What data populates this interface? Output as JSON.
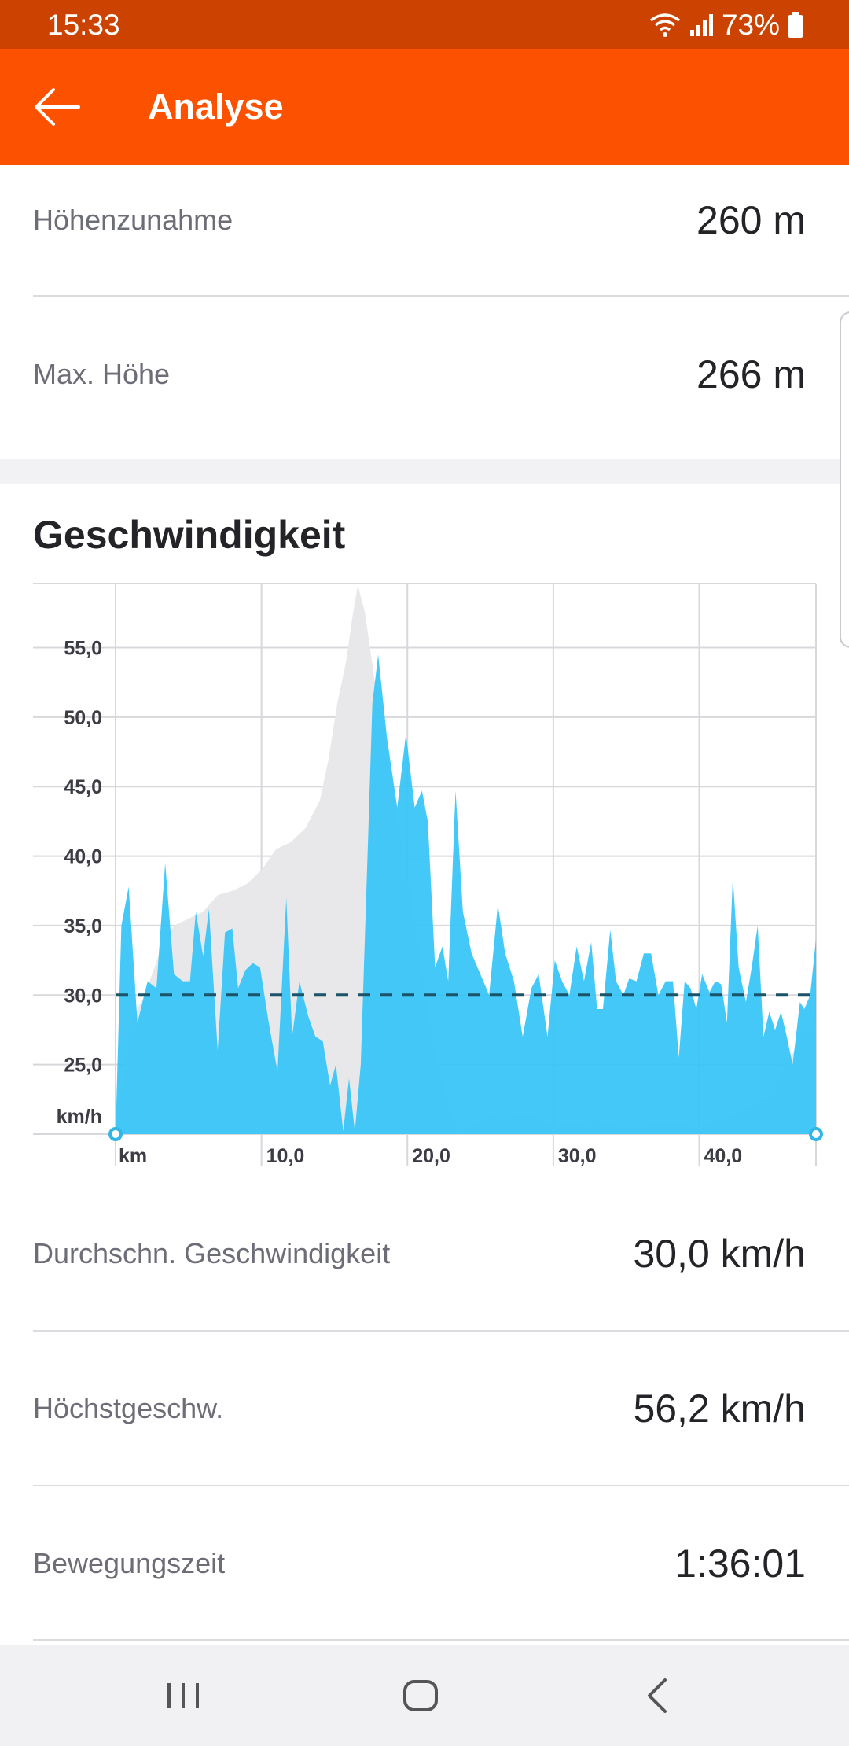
{
  "status_bar": {
    "time": "15:33",
    "battery": "73%"
  },
  "app_bar": {
    "title": "Analyse"
  },
  "elevation_rows": [
    {
      "label": "Höhenzunahme",
      "value": "260 m"
    },
    {
      "label": "Max. Höhe",
      "value": "266 m"
    }
  ],
  "speed_section": {
    "title": "Geschwindigkeit"
  },
  "chart_data": {
    "type": "area",
    "y_unit_label": "km/h",
    "x_unit_label": "km",
    "y_ticks": [
      "25,0",
      "30,0",
      "35,0",
      "40,0",
      "45,0",
      "50,0",
      "55,0"
    ],
    "x_ticks": [
      "10,0",
      "20,0",
      "30,0",
      "40,0"
    ],
    "ylim": [
      20,
      59.5
    ],
    "xlim": [
      0,
      48
    ],
    "average_line": 30.0,
    "grid": true,
    "colors": {
      "speed": "#33c3f7",
      "elevation": "#e8e8ea",
      "average": "#1b5468",
      "marker": "#33b5e5"
    },
    "series": [
      {
        "values": [
          [
            0,
            20
          ],
          [
            0.4,
            35
          ],
          [
            0.9,
            37.8
          ],
          [
            1.5,
            28
          ],
          [
            2.2,
            31
          ],
          [
            2.8,
            30.5
          ],
          [
            3.4,
            39.5
          ],
          [
            4.0,
            31.5
          ],
          [
            4.6,
            31
          ],
          [
            5.1,
            31
          ],
          [
            5.5,
            36
          ],
          [
            6.0,
            32.8
          ],
          [
            6.4,
            36.2
          ],
          [
            7.0,
            26
          ],
          [
            7.5,
            34.5
          ],
          [
            8.0,
            34.8
          ],
          [
            8.4,
            30.5
          ],
          [
            8.9,
            31.8
          ],
          [
            9.4,
            32.3
          ],
          [
            9.9,
            32
          ],
          [
            10.5,
            28
          ],
          [
            11.1,
            24.5
          ],
          [
            11.7,
            37
          ],
          [
            12.1,
            27
          ],
          [
            12.6,
            31
          ],
          [
            13.2,
            28.5
          ],
          [
            13.7,
            27
          ],
          [
            14.2,
            26.7
          ],
          [
            14.7,
            23.5
          ],
          [
            15.1,
            25
          ],
          [
            15.6,
            20.2
          ],
          [
            16.0,
            24
          ],
          [
            16.4,
            20.2
          ],
          [
            16.8,
            25
          ],
          [
            17.3,
            41
          ],
          [
            17.6,
            51
          ],
          [
            18.0,
            54.5
          ],
          [
            18.6,
            48.5
          ],
          [
            19.3,
            43.5
          ],
          [
            19.9,
            48.8
          ],
          [
            20.5,
            43.5
          ],
          [
            21.0,
            44.7
          ],
          [
            21.4,
            42.5
          ],
          [
            21.9,
            32
          ],
          [
            22.4,
            33.5
          ],
          [
            22.8,
            31
          ],
          [
            23.3,
            44.7
          ],
          [
            23.8,
            36
          ],
          [
            24.4,
            33
          ],
          [
            25.0,
            31.5
          ],
          [
            25.6,
            30
          ],
          [
            26.2,
            36.5
          ],
          [
            26.7,
            33
          ],
          [
            27.3,
            31
          ],
          [
            27.9,
            27
          ],
          [
            28.5,
            30.5
          ],
          [
            29.0,
            31.5
          ],
          [
            29.6,
            27
          ],
          [
            30.1,
            32.5
          ],
          [
            30.6,
            31
          ],
          [
            31.1,
            30
          ],
          [
            31.6,
            33.5
          ],
          [
            32.1,
            31
          ],
          [
            32.6,
            33.8
          ],
          [
            33.0,
            29
          ],
          [
            33.4,
            29
          ],
          [
            33.9,
            34.7
          ],
          [
            34.3,
            31
          ],
          [
            34.8,
            30
          ],
          [
            35.2,
            31.2
          ],
          [
            35.7,
            31
          ],
          [
            36.2,
            33
          ],
          [
            36.7,
            33
          ],
          [
            37.2,
            30
          ],
          [
            37.7,
            31
          ],
          [
            38.2,
            31
          ],
          [
            38.6,
            25.5
          ],
          [
            39.0,
            31
          ],
          [
            39.4,
            30.5
          ],
          [
            39.8,
            29
          ],
          [
            40.2,
            31.5
          ],
          [
            40.7,
            30.2
          ],
          [
            41.1,
            31
          ],
          [
            41.5,
            30.8
          ],
          [
            41.9,
            28
          ],
          [
            42.3,
            38.5
          ],
          [
            42.7,
            32
          ],
          [
            43.2,
            29.5
          ],
          [
            43.6,
            32
          ],
          [
            44.0,
            35
          ],
          [
            44.4,
            27
          ],
          [
            44.8,
            28.8
          ],
          [
            45.2,
            27.5
          ],
          [
            45.6,
            28.8
          ],
          [
            46.0,
            27
          ],
          [
            46.4,
            25
          ],
          [
            46.9,
            29.5
          ],
          [
            47.2,
            29
          ],
          [
            47.6,
            30
          ],
          [
            48.0,
            34
          ],
          [
            48.0,
            20
          ]
        ]
      },
      {
        "values": [
          [
            0,
            20
          ],
          [
            1,
            28
          ],
          [
            2,
            30
          ],
          [
            3,
            33
          ],
          [
            4,
            35
          ],
          [
            5,
            35.5
          ],
          [
            6,
            36
          ],
          [
            7,
            37.2
          ],
          [
            8,
            37.5
          ],
          [
            9,
            38
          ],
          [
            10,
            39
          ],
          [
            11,
            40.5
          ],
          [
            12,
            41
          ],
          [
            13,
            42
          ],
          [
            14,
            44
          ],
          [
            14.6,
            47
          ],
          [
            15.2,
            51
          ],
          [
            15.8,
            54
          ],
          [
            16.2,
            57
          ],
          [
            16.6,
            59.5
          ],
          [
            17.1,
            57.5
          ],
          [
            17.7,
            53
          ],
          [
            18.5,
            48
          ],
          [
            19.4,
            42
          ],
          [
            20.4,
            36
          ],
          [
            21.2,
            30
          ],
          [
            22.0,
            25
          ],
          [
            22.8,
            22
          ],
          [
            23.5,
            20.2
          ],
          [
            25,
            20.8
          ],
          [
            26,
            21.5
          ],
          [
            26.5,
            21
          ],
          [
            28,
            21.5
          ],
          [
            30,
            20.5
          ],
          [
            33,
            21
          ],
          [
            34,
            20.6
          ],
          [
            36,
            20.4
          ],
          [
            38,
            20.8
          ],
          [
            39.5,
            20.5
          ],
          [
            41.5,
            21
          ],
          [
            43,
            21.8
          ],
          [
            44.5,
            22.5
          ],
          [
            45.5,
            24
          ],
          [
            46.5,
            26
          ],
          [
            47.2,
            27.5
          ],
          [
            48,
            28
          ],
          [
            48,
            20
          ]
        ]
      }
    ]
  },
  "speed_rows": [
    {
      "label": "Durchschn. Geschwindigkeit",
      "value": "30,0 km/h"
    },
    {
      "label": "Höchstgeschw.",
      "value": "56,2 km/h"
    },
    {
      "label": "Bewegungszeit",
      "value": "1:36:01"
    }
  ]
}
